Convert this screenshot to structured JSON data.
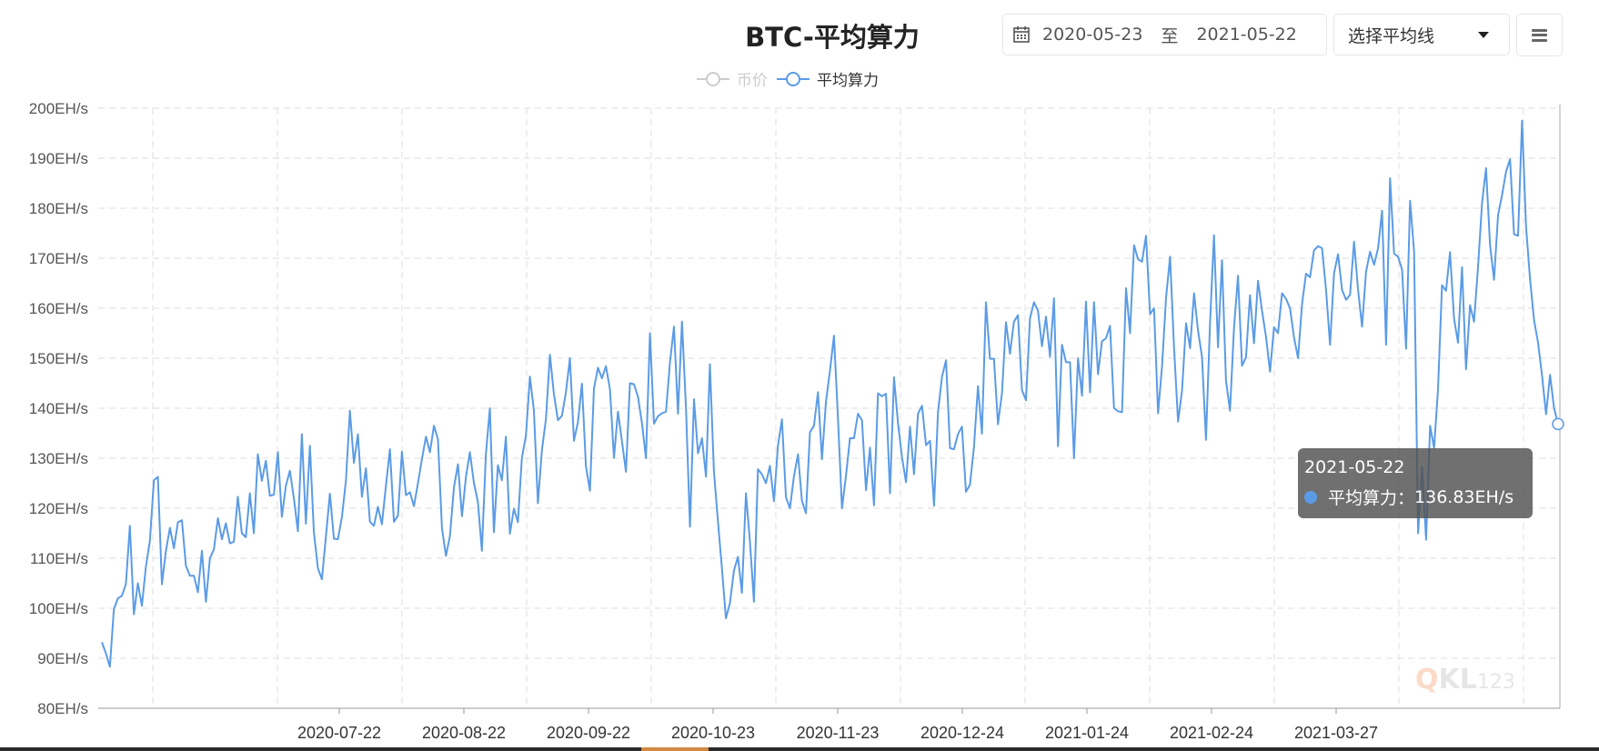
{
  "title": "BTC-平均算力",
  "legend": [
    {
      "label": "币价",
      "active": false,
      "color": "#cccccc"
    },
    {
      "label": "平均算力",
      "active": true,
      "color": "#5b9be6"
    }
  ],
  "date_range": {
    "start": "2020-05-23",
    "separator": "至",
    "end": "2021-05-22"
  },
  "ma_select": {
    "label": "选择平均线"
  },
  "menu_button": {
    "icon": "hamburger-menu-icon"
  },
  "tooltip": {
    "date": "2021-05-22",
    "series": "平均算力",
    "value": "136.83EH/s",
    "label_sep": "："
  },
  "watermark": {
    "q": "Q",
    "kl": "KL",
    "num": "123"
  },
  "colors": {
    "line": "#5b9be6",
    "grid": "#e4e4e4",
    "axis": "#999999"
  },
  "chart_data": {
    "type": "line",
    "title": "BTC-平均算力",
    "xlabel": "",
    "ylabel": "",
    "ylim": [
      80,
      200
    ],
    "y_ticks": [
      "80EH/s",
      "90EH/s",
      "100EH/s",
      "110EH/s",
      "120EH/s",
      "130EH/s",
      "140EH/s",
      "150EH/s",
      "160EH/s",
      "170EH/s",
      "180EH/s",
      "190EH/s",
      "200EH/s"
    ],
    "x_ticks": [
      "2020-07-22",
      "2020-08-22",
      "2020-09-22",
      "2020-10-23",
      "2020-11-23",
      "2020-12-24",
      "2021-01-24",
      "2021-02-24",
      "2021-03-27"
    ],
    "x_start": "2020-05-23",
    "x_end": "2021-05-22",
    "grid": true,
    "legend_position": "top-center",
    "series": [
      {
        "name": "平均算力",
        "unit": "EH/s",
        "values": [
          93.2,
          91.0,
          88.3,
          99.8,
          102.0,
          102.5,
          104.8,
          116.5,
          98.8,
          105.0,
          100.5,
          108.3,
          113.5,
          125.6,
          126.3,
          104.8,
          111.4,
          116.1,
          112.0,
          117.2,
          117.6,
          108.5,
          106.5,
          106.5,
          103.2,
          111.5,
          101.3,
          110.0,
          111.8,
          118.0,
          113.8,
          117.0,
          113.0,
          113.3,
          122.3,
          115.0,
          114.2,
          123.0,
          115.0,
          130.8,
          125.5,
          129.5,
          122.5,
          122.7,
          131.2,
          118.3,
          124.5,
          127.5,
          122.0,
          115.4,
          134.8,
          116.9,
          132.5,
          115.2,
          108.0,
          105.8,
          114.3,
          122.9,
          113.9,
          113.8,
          118.2,
          125.5,
          139.5,
          129.1,
          134.8,
          122.3,
          128.0,
          117.3,
          116.5,
          120.3,
          116.8,
          124.5,
          131.8,
          117.3,
          118.5,
          131.3,
          122.6,
          123.2,
          120.4,
          125.0,
          129.8,
          134.3,
          131.2,
          136.5,
          133.8,
          116.0,
          110.5,
          114.5,
          124.2,
          128.8,
          118.4,
          126.3,
          131.2,
          125.1,
          121.3,
          111.5,
          130.8,
          140.0,
          115.2,
          128.6,
          125.6,
          134.3,
          114.9,
          119.9,
          117.2,
          130.1,
          134.5,
          146.3,
          139.5,
          121.0,
          131.6,
          137.8,
          150.7,
          142.8,
          137.6,
          138.5,
          143.2,
          150.0,
          133.5,
          137.2,
          144.9,
          128.4,
          123.5,
          143.9,
          148.1,
          146.0,
          148.4,
          143.8,
          130.1,
          139.3,
          133.4,
          127.3,
          145.0,
          144.8,
          142.3,
          137.0,
          130.0,
          155.0,
          136.9,
          138.4,
          139.0,
          139.3,
          149.2,
          156.3,
          138.9,
          157.3,
          140.0,
          116.3,
          141.8,
          131.0,
          134.0,
          126.3,
          148.8,
          127.4,
          117.5,
          108.0,
          98.0,
          101.0,
          107.5,
          110.3,
          103.1,
          123.0,
          113.4,
          101.3,
          127.8,
          126.8,
          125.0,
          128.5,
          121.4,
          132.5,
          137.8,
          122.2,
          120.0,
          126.4,
          130.8,
          121.5,
          119.0,
          135.2,
          136.5,
          143.2,
          129.8,
          141.3,
          147.5,
          154.5,
          138.0,
          120.0,
          126.5,
          134.0,
          134.0,
          138.9,
          137.6,
          123.6,
          132.1,
          120.6,
          143.0,
          142.4,
          142.9,
          123.0,
          146.2,
          137.0,
          130.2,
          125.2,
          136.3,
          126.8,
          138.9,
          140.5,
          132.6,
          133.5,
          120.5,
          139.3,
          146.3,
          149.6,
          132.0,
          131.8,
          134.8,
          136.3,
          123.3,
          124.7,
          132.2,
          144.4,
          134.9,
          161.2,
          149.9,
          149.9,
          136.8,
          143.0,
          157.2,
          150.9,
          157.3,
          158.6,
          143.6,
          141.6,
          158.0,
          161.2,
          159.5,
          152.4,
          158.3,
          150.3,
          162.0,
          132.4,
          152.7,
          149.2,
          149.2,
          130.0,
          150.0,
          142.5,
          161.3,
          143.2,
          161.2,
          146.8,
          153.4,
          154.0,
          156.5,
          140.0,
          139.4,
          139.2,
          164.0,
          155.0,
          172.6,
          169.8,
          169.3,
          174.5,
          158.8,
          160.0,
          139.0,
          148.4,
          162.1,
          170.3,
          152.1,
          137.3,
          143.6,
          157.0,
          152.0,
          163.0,
          155.6,
          150.3,
          133.7,
          156.8,
          174.6,
          152.2,
          169.6,
          145.5,
          139.5,
          156.0,
          166.5,
          148.5,
          150.2,
          162.6,
          153.0,
          165.5,
          159.5,
          154.3,
          147.3,
          156.2,
          155.0,
          163.0,
          161.9,
          160.0,
          154.2,
          150.0,
          160.8,
          166.9,
          166.2,
          171.6,
          172.4,
          172.0,
          163.7,
          152.7,
          167.0,
          170.8,
          163.7,
          161.7,
          162.7,
          173.3,
          163.7,
          156.3,
          167.3,
          171.3,
          168.7,
          172.0,
          179.5,
          152.7,
          186.0,
          170.9,
          170.3,
          167.7,
          151.9,
          181.5,
          171.3,
          115.0,
          128.3,
          113.7,
          136.5,
          132.0,
          143.8,
          164.6,
          163.5,
          171.2,
          158.0,
          153.1,
          168.2,
          147.8,
          160.6,
          157.3,
          168.2,
          181.0,
          188.0,
          172.7,
          165.7,
          178.6,
          182.6,
          187.3,
          189.8,
          174.8,
          174.5,
          197.5,
          176.3,
          165.8,
          157.6,
          153.1,
          146.5,
          138.8,
          146.7,
          140.0,
          136.83
        ]
      }
    ]
  }
}
